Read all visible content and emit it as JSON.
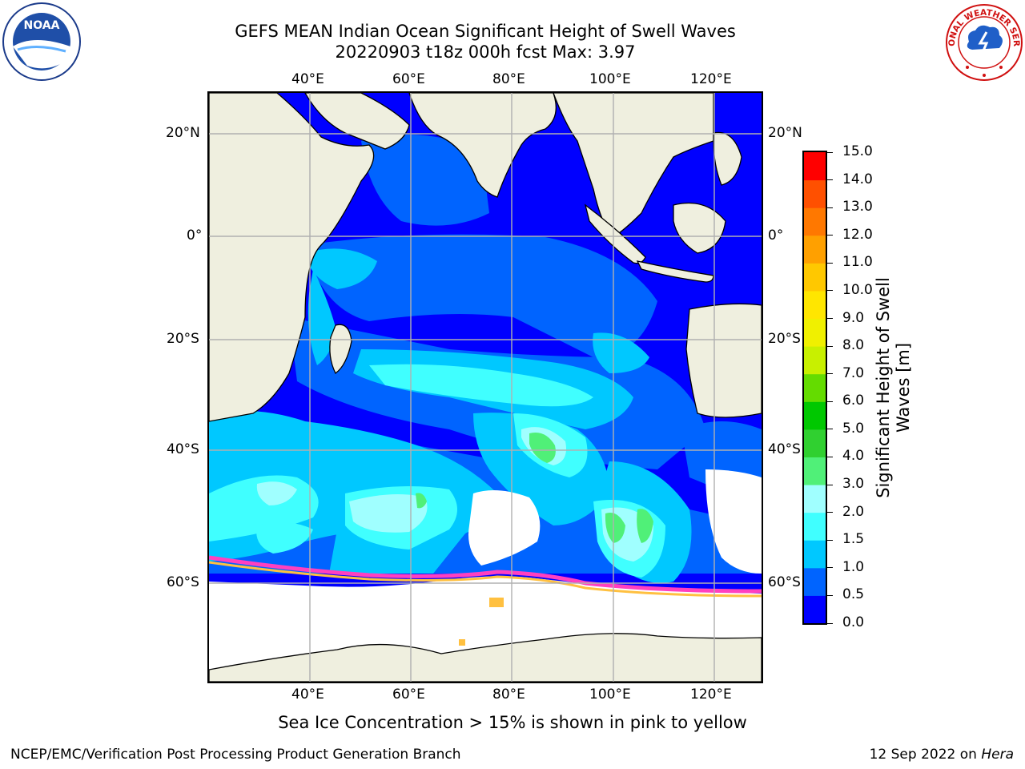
{
  "title": {
    "line1": "GEFS MEAN Indian Ocean Significant Height of Swell Waves",
    "line2": "20220903 t18z 000h fcst   Max: 3.97"
  },
  "map": {
    "lon_labels": [
      "40°E",
      "60°E",
      "80°E",
      "100°E",
      "120°E"
    ],
    "lat_labels": [
      "20°N",
      "0°",
      "20°S",
      "40°S",
      "60°S"
    ]
  },
  "colorbar": {
    "title_line1": "Significant Height of Swell",
    "title_line2": "Waves [m]",
    "levels": [
      "0.0",
      "0.5",
      "1.0",
      "1.5",
      "2.0",
      "3.0",
      "4.0",
      "5.0",
      "6.0",
      "7.0",
      "8.0",
      "9.0",
      "10.0",
      "11.0",
      "12.0",
      "13.0",
      "14.0",
      "15.0"
    ],
    "colors": [
      "#0000ff",
      "#0064ff",
      "#00c8ff",
      "#40ffff",
      "#a0ffff",
      "#50f078",
      "#30d030",
      "#00c800",
      "#64dc00",
      "#c8f000",
      "#f0f000",
      "#ffe600",
      "#ffc800",
      "#ffa000",
      "#ff7800",
      "#ff5000",
      "#ff0000"
    ]
  },
  "colors": {
    "land": "#efefdf",
    "ocean_deep": "#0000ff",
    "band_05": "#0064ff",
    "band_10": "#00c8ff",
    "band_15": "#40ffff",
    "band_20": "#a0ffff",
    "band_30": "#50f078",
    "ice": "#ffffff",
    "ice_edge_pink": "#ff40c0",
    "ice_edge_yellow": "#ffc040"
  },
  "logos": {
    "left": "NOAA",
    "right": "NATIONAL WEATHER SERVICE"
  },
  "caption": "Sea Ice Concentration > 15% is shown in pink to yellow",
  "footer": {
    "left": "NCEP/EMC/Verification Post Processing Product Generation Branch",
    "right_date": "12 Sep 2022 on ",
    "right_host": "Hera"
  }
}
